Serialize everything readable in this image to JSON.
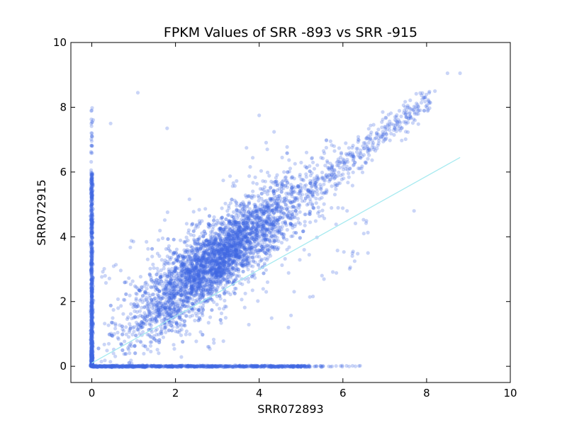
{
  "chart_data": {
    "type": "scatter",
    "title": "FPKM Values of SRR -893 vs SRR -915",
    "xlabel": "SRR072893",
    "ylabel": "SRR072915",
    "xlim": [
      -0.5,
      10
    ],
    "ylim": [
      -0.5,
      10
    ],
    "xticks": [
      "0",
      "2",
      "4",
      "6",
      "8",
      "10"
    ],
    "yticks": [
      "0",
      "2",
      "4",
      "6",
      "8",
      "10"
    ],
    "grid": false,
    "legend": "none",
    "point_color": "#4169e1",
    "point_opacity": 0.28,
    "fit_line": {
      "color": "#a6eaf0",
      "x": [
        0,
        8.8
      ],
      "y": [
        0.1,
        6.45
      ]
    },
    "series": [
      {
        "values_summary": "approx. 15000 gene FPKM pairs (log scale); dense diagonal cloud between 0-8, heavy pile-up along x=0 (y 0-7) and y=0 (x 0-6.5)",
        "points": [
          [
            0,
            0
          ],
          [
            0,
            0.5
          ],
          [
            0,
            1.2
          ],
          [
            0,
            2.3
          ],
          [
            0,
            3.1
          ],
          [
            0,
            4.0
          ],
          [
            0,
            5.0
          ],
          [
            0,
            5.8
          ],
          [
            0,
            7.1
          ],
          [
            0,
            7.9
          ],
          [
            0.5,
            0
          ],
          [
            1.5,
            0
          ],
          [
            2.5,
            0
          ],
          [
            3.5,
            0
          ],
          [
            4.5,
            0
          ],
          [
            5.5,
            0
          ],
          [
            6.3,
            0
          ],
          [
            1.1,
            8.45
          ],
          [
            1.8,
            7.35
          ],
          [
            0.45,
            7.5
          ],
          [
            4.0,
            7.75
          ],
          [
            8.5,
            9.05
          ],
          [
            8.8,
            9.05
          ],
          [
            8.2,
            8.5
          ],
          [
            7.8,
            8.0
          ],
          [
            5.5,
            2.8
          ],
          [
            6.1,
            4.8
          ],
          [
            6.6,
            3.5
          ],
          [
            7.7,
            4.8
          ],
          [
            6.5,
            4.1
          ],
          [
            2.0,
            2.2
          ],
          [
            2.5,
            2.8
          ],
          [
            3.0,
            3.0
          ],
          [
            3.5,
            3.5
          ],
          [
            4.0,
            4.0
          ],
          [
            4.5,
            4.6
          ],
          [
            5.0,
            5.2
          ],
          [
            5.5,
            5.8
          ],
          [
            6.0,
            6.3
          ],
          [
            6.5,
            6.9
          ],
          [
            7.0,
            7.4
          ],
          [
            7.5,
            7.8
          ],
          [
            1.0,
            1.5
          ],
          [
            1.5,
            2.5
          ],
          [
            2.0,
            3.3
          ],
          [
            3.0,
            4.5
          ],
          [
            3.2,
            1.5
          ],
          [
            4.2,
            2.6
          ],
          [
            4.7,
            1.2
          ],
          [
            2.8,
            0.6
          ]
        ]
      }
    ]
  }
}
